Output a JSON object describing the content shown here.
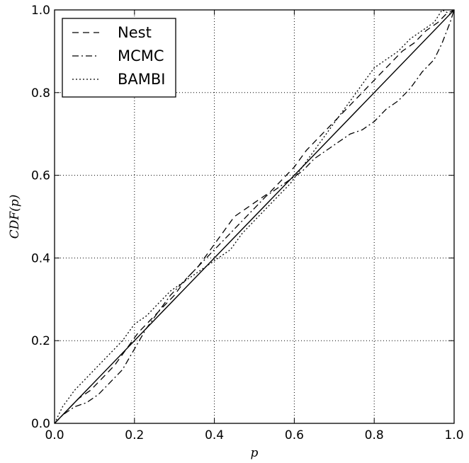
{
  "chart_data": {
    "type": "line",
    "xlabel": "p",
    "ylabel": "CDF(p)",
    "xlim": [
      0.0,
      1.0
    ],
    "ylim": [
      0.0,
      1.0
    ],
    "x_ticks": [
      "0.0",
      "0.2",
      "0.4",
      "0.6",
      "0.8",
      "1.0"
    ],
    "y_ticks": [
      "0.0",
      "0.2",
      "0.4",
      "0.6",
      "0.8",
      "1.0"
    ],
    "grid": true,
    "legend_position": "top-left",
    "reference_line": {
      "x": [
        0.0,
        1.0
      ],
      "y": [
        0.0,
        1.0
      ],
      "style": "solid"
    },
    "series": [
      {
        "name": "Nest",
        "style": "dashed",
        "x": [
          0.0,
          0.03,
          0.06,
          0.09,
          0.12,
          0.15,
          0.18,
          0.21,
          0.24,
          0.27,
          0.3,
          0.33,
          0.36,
          0.39,
          0.42,
          0.45,
          0.48,
          0.51,
          0.54,
          0.57,
          0.6,
          0.63,
          0.66,
          0.69,
          0.72,
          0.75,
          0.78,
          0.81,
          0.84,
          0.87,
          0.9,
          0.93,
          0.96,
          0.98,
          1.0
        ],
        "y": [
          0.0,
          0.03,
          0.06,
          0.08,
          0.11,
          0.14,
          0.18,
          0.22,
          0.25,
          0.28,
          0.31,
          0.35,
          0.38,
          0.42,
          0.46,
          0.5,
          0.52,
          0.54,
          0.56,
          0.59,
          0.62,
          0.66,
          0.69,
          0.72,
          0.75,
          0.78,
          0.81,
          0.84,
          0.87,
          0.9,
          0.92,
          0.95,
          0.97,
          0.99,
          1.0
        ]
      },
      {
        "name": "MCMC",
        "style": "dashdot",
        "x": [
          0.0,
          0.02,
          0.05,
          0.08,
          0.11,
          0.14,
          0.17,
          0.2,
          0.23,
          0.26,
          0.29,
          0.32,
          0.35,
          0.38,
          0.41,
          0.44,
          0.47,
          0.5,
          0.53,
          0.56,
          0.59,
          0.62,
          0.65,
          0.68,
          0.71,
          0.74,
          0.77,
          0.8,
          0.83,
          0.86,
          0.89,
          0.92,
          0.95,
          0.97,
          0.99,
          1.0
        ],
        "y": [
          0.0,
          0.02,
          0.04,
          0.05,
          0.07,
          0.1,
          0.13,
          0.18,
          0.23,
          0.27,
          0.31,
          0.34,
          0.37,
          0.4,
          0.43,
          0.46,
          0.49,
          0.52,
          0.55,
          0.57,
          0.59,
          0.61,
          0.64,
          0.66,
          0.68,
          0.7,
          0.71,
          0.73,
          0.76,
          0.78,
          0.81,
          0.85,
          0.88,
          0.92,
          0.97,
          1.0
        ]
      },
      {
        "name": "BAMBI",
        "style": "dotted",
        "x": [
          0.0,
          0.02,
          0.05,
          0.08,
          0.11,
          0.14,
          0.17,
          0.2,
          0.23,
          0.26,
          0.29,
          0.32,
          0.35,
          0.38,
          0.41,
          0.44,
          0.47,
          0.5,
          0.53,
          0.56,
          0.59,
          0.62,
          0.65,
          0.68,
          0.71,
          0.74,
          0.77,
          0.8,
          0.83,
          0.86,
          0.89,
          0.92,
          0.95,
          0.97,
          0.99,
          1.0
        ],
        "y": [
          0.0,
          0.04,
          0.08,
          0.11,
          0.14,
          0.17,
          0.2,
          0.24,
          0.26,
          0.29,
          0.32,
          0.34,
          0.36,
          0.38,
          0.4,
          0.42,
          0.46,
          0.49,
          0.52,
          0.55,
          0.58,
          0.62,
          0.66,
          0.7,
          0.74,
          0.78,
          0.82,
          0.86,
          0.88,
          0.9,
          0.93,
          0.95,
          0.97,
          1.0,
          0.99,
          1.0
        ]
      }
    ]
  }
}
